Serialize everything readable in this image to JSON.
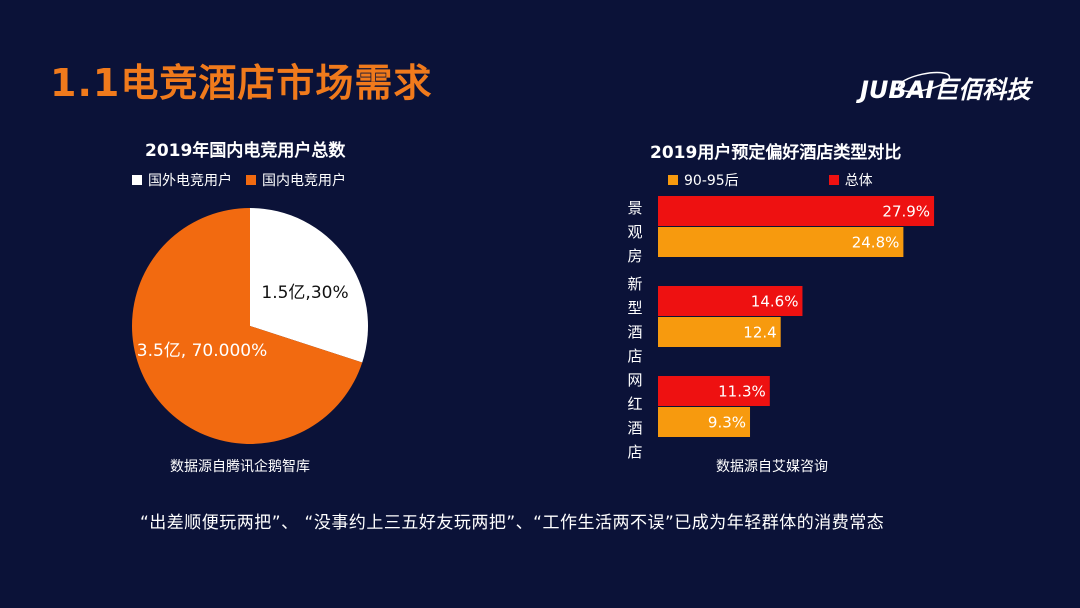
{
  "title": "1.1电竞酒店市场需求",
  "logo": {
    "text": "JUBAI巨佰科技"
  },
  "colors": {
    "accent": "#f07a1c",
    "background": "#0b1238",
    "pie_foreign": "#ffffff",
    "pie_domestic": "#f26a10",
    "bar_total": "#ee1111",
    "bar_young": "#f79a0e"
  },
  "bottom_note": "“出差顺便玩两把”、 “没事约上三五好友玩两把”、“工作生活两不误”已成为年轻群体的消费常态",
  "chart_data": [
    {
      "type": "pie",
      "title": "2019年国内电竞用户总数",
      "legend": [
        "国外电竞用户",
        "国内电竞用户"
      ],
      "legend_position": "top",
      "slices": [
        {
          "name": "国外电竞用户",
          "value": 30,
          "label": "1.5亿,30%"
        },
        {
          "name": "国内电竞用户",
          "value": 70,
          "label": "3.5亿, 70.000%"
        }
      ],
      "source": "数据源自腾讯企鹅智库"
    },
    {
      "type": "bar",
      "orientation": "horizontal",
      "title": "2019用户预定偏好酒店类型对比",
      "legend_position": "top",
      "categories": [
        "景观房",
        "新型酒店",
        "网红酒店"
      ],
      "series": [
        {
          "name": "总体",
          "values": [
            27.9,
            14.6,
            11.3
          ],
          "labels": [
            "27.9%",
            "14.6%",
            "11.3%"
          ]
        },
        {
          "name": "90-95后",
          "values": [
            24.8,
            12.4,
            9.3
          ],
          "labels": [
            "24.8%",
            "12.4",
            "9.3%"
          ]
        }
      ],
      "legend_order": [
        "90-95后",
        "总体"
      ],
      "xlim": [
        0,
        28.5
      ],
      "source": "数据源自艾媒咨询"
    }
  ]
}
